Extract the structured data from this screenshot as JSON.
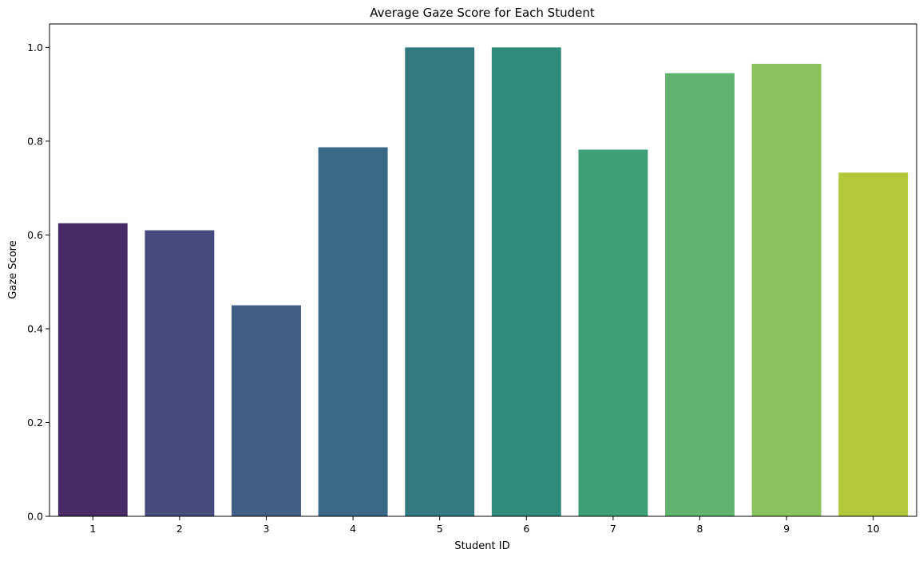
{
  "chart_data": {
    "type": "bar",
    "title": "Average Gaze Score for Each Student",
    "xlabel": "Student ID",
    "ylabel": "Gaze Score",
    "categories": [
      "1",
      "2",
      "3",
      "4",
      "5",
      "6",
      "7",
      "8",
      "9",
      "10"
    ],
    "values": [
      0.625,
      0.61,
      0.45,
      0.787,
      1.0,
      1.0,
      0.782,
      0.945,
      0.965,
      0.733
    ],
    "colors": [
      "#482A66",
      "#474A7D",
      "#415D84",
      "#3A6986",
      "#327A80",
      "#2F8C7D",
      "#3C9F78",
      "#60B46F",
      "#8AC35C",
      "#B2C73A"
    ],
    "ylim": [
      0,
      1.05
    ],
    "yticks": [
      "0.0",
      "0.2",
      "0.4",
      "0.6",
      "0.8",
      "1.0"
    ],
    "grid": false,
    "legend": "none"
  }
}
